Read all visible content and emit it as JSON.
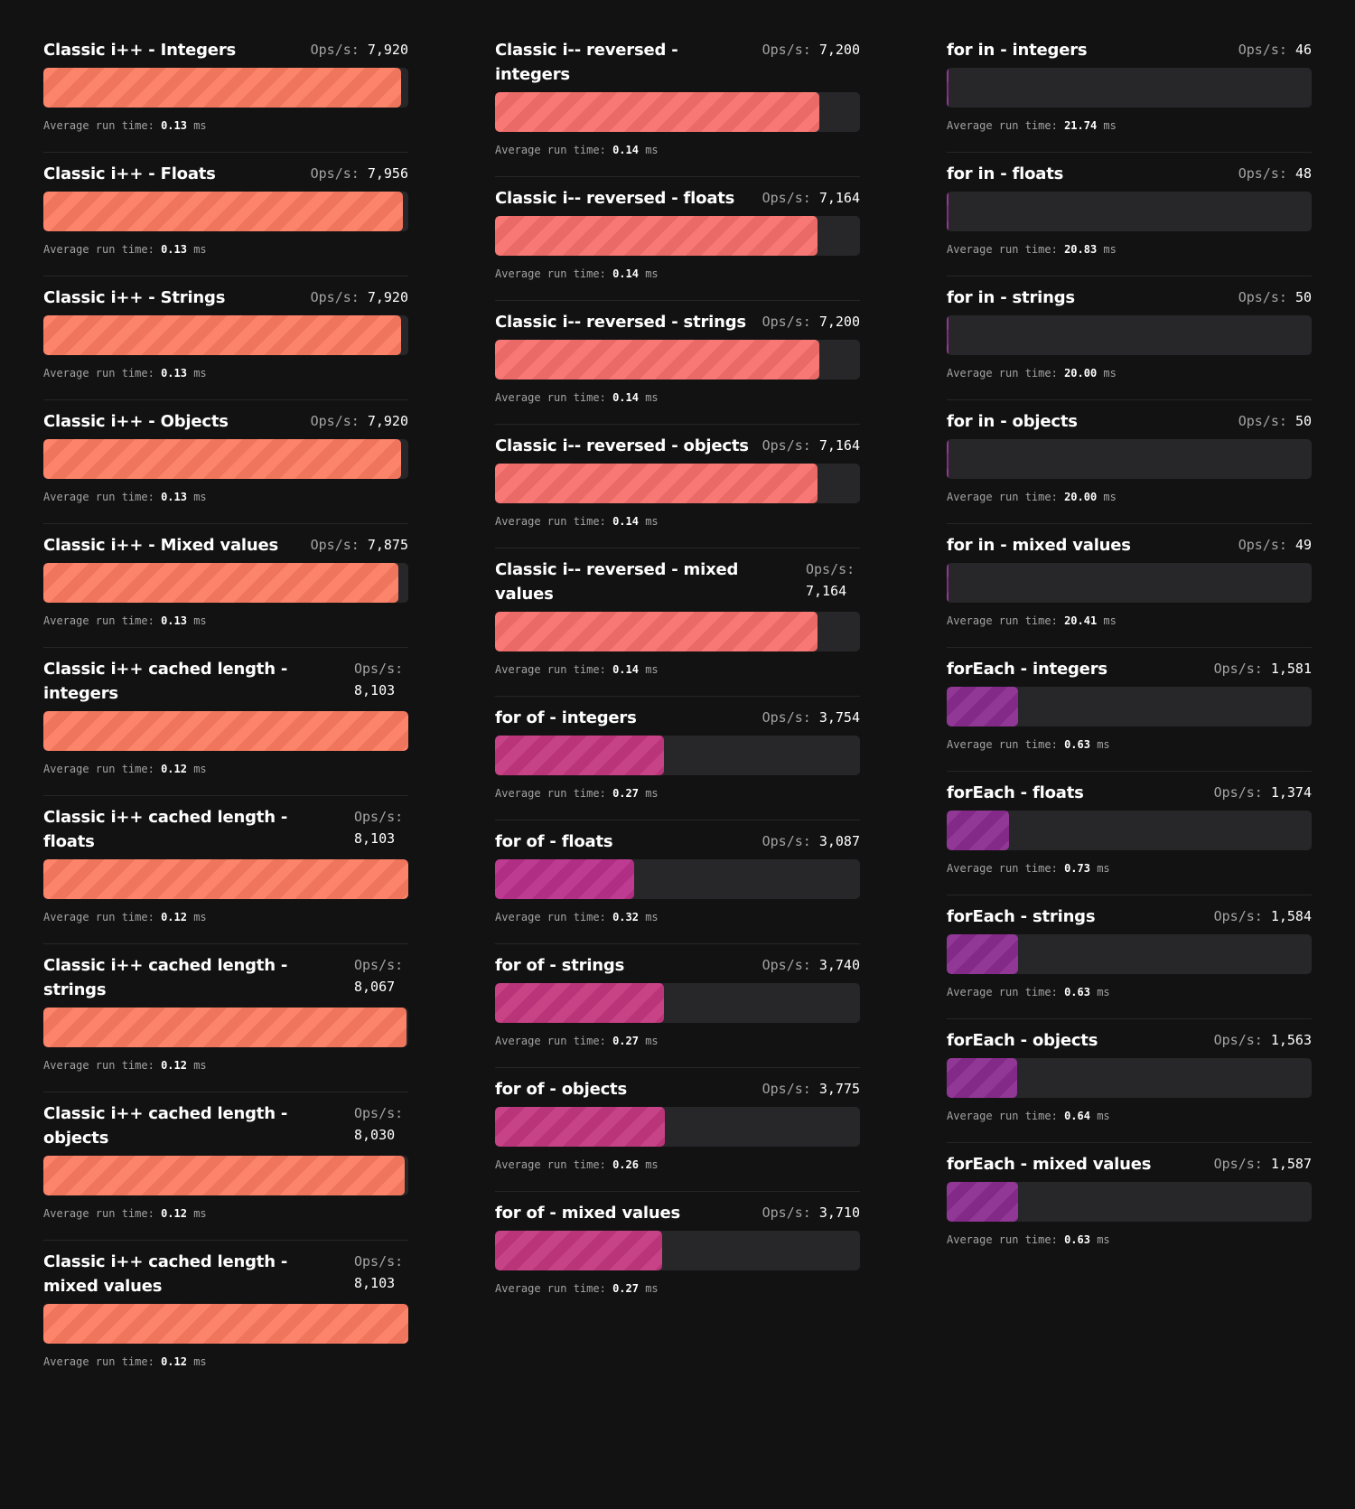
{
  "labels": {
    "ops": "Ops/s:",
    "avg": "Average run time:",
    "unit": "ms"
  },
  "colors": {
    "track": "#272729",
    "background": "#121212"
  },
  "columns": [
    {
      "id": "classic-increment",
      "items": [
        {
          "name": "Classic i++ - Integers",
          "ops": "7,920",
          "fill": 0.98,
          "avg": "0.13",
          "color": "#fc7c62",
          "wrap": false
        },
        {
          "name": "Classic i++ - Floats",
          "ops": "7,956",
          "fill": 0.985,
          "avg": "0.13",
          "color": "#fc7c62",
          "wrap": false
        },
        {
          "name": "Classic i++ - Strings",
          "ops": "7,920",
          "fill": 0.98,
          "avg": "0.13",
          "color": "#fc7c62",
          "wrap": false
        },
        {
          "name": "Classic i++ - Objects",
          "ops": "7,920",
          "fill": 0.98,
          "avg": "0.13",
          "color": "#fc7c62",
          "wrap": false
        },
        {
          "name": "Classic i++ - Mixed values",
          "ops": "7,875",
          "fill": 0.972,
          "avg": "0.13",
          "color": "#fc7c62",
          "wrap": false
        },
        {
          "name": "Classic i++ cached length - integers",
          "ops": "8,103",
          "fill": 1.0,
          "avg": "0.12",
          "color": "#fc7c62",
          "wrap": true
        },
        {
          "name": "Classic i++ cached length - floats",
          "ops": "8,103",
          "fill": 1.0,
          "avg": "0.12",
          "color": "#fc7c62",
          "wrap": true
        },
        {
          "name": "Classic i++ cached length - strings",
          "ops": "8,067",
          "fill": 0.995,
          "avg": "0.12",
          "color": "#fc7c62",
          "wrap": true
        },
        {
          "name": "Classic i++ cached length - objects",
          "ops": "8,030",
          "fill": 0.99,
          "avg": "0.12",
          "color": "#fc7c62",
          "wrap": true
        },
        {
          "name": "Classic i++ cached length - mixed values",
          "ops": "8,103",
          "fill": 1.0,
          "avg": "0.12",
          "color": "#fc7c62",
          "wrap": true
        }
      ]
    },
    {
      "id": "reversed-and-for-of",
      "items": [
        {
          "name": "Classic i-- reversed - integers",
          "ops": "7,200",
          "fill": 0.889,
          "avg": "0.14",
          "color": "#f6706b",
          "wrap": false
        },
        {
          "name": "Classic i-- reversed - floats",
          "ops": "7,164",
          "fill": 0.884,
          "avg": "0.14",
          "color": "#f6706b",
          "wrap": false
        },
        {
          "name": "Classic i-- reversed - strings",
          "ops": "7,200",
          "fill": 0.889,
          "avg": "0.14",
          "color": "#f6706b",
          "wrap": false
        },
        {
          "name": "Classic i-- reversed - objects",
          "ops": "7,164",
          "fill": 0.884,
          "avg": "0.14",
          "color": "#f6706b",
          "wrap": false
        },
        {
          "name": "Classic i-- reversed - mixed values",
          "ops": "7,164",
          "fill": 0.884,
          "avg": "0.14",
          "color": "#f6706b",
          "wrap": true
        },
        {
          "name": "for of - integers",
          "ops": "3,754",
          "fill": 0.463,
          "avg": "0.27",
          "color": "#c4377f",
          "wrap": false
        },
        {
          "name": "for of - floats",
          "ops": "3,087",
          "fill": 0.381,
          "avg": "0.32",
          "color": "#b9308a",
          "wrap": false
        },
        {
          "name": "for of - strings",
          "ops": "3,740",
          "fill": 0.462,
          "avg": "0.27",
          "color": "#c4377f",
          "wrap": false
        },
        {
          "name": "for of - objects",
          "ops": "3,775",
          "fill": 0.466,
          "avg": "0.26",
          "color": "#c4377f",
          "wrap": false
        },
        {
          "name": "for of - mixed values",
          "ops": "3,710",
          "fill": 0.458,
          "avg": "0.27",
          "color": "#c4377f",
          "wrap": false
        }
      ]
    },
    {
      "id": "for-in-and-foreach",
      "items": [
        {
          "name": "for in - integers",
          "ops": "46",
          "fill": 0.0057,
          "avg": "21.74",
          "color": "#8a2b8f",
          "wrap": false
        },
        {
          "name": "for in - floats",
          "ops": "48",
          "fill": 0.0059,
          "avg": "20.83",
          "color": "#8a2b8f",
          "wrap": false
        },
        {
          "name": "for in - strings",
          "ops": "50",
          "fill": 0.0062,
          "avg": "20.00",
          "color": "#8a2b8f",
          "wrap": false
        },
        {
          "name": "for in - objects",
          "ops": "50",
          "fill": 0.0062,
          "avg": "20.00",
          "color": "#8a2b8f",
          "wrap": false
        },
        {
          "name": "for in - mixed values",
          "ops": "49",
          "fill": 0.006,
          "avg": "20.41",
          "color": "#8a2b8f",
          "wrap": false
        },
        {
          "name": "forEach - integers",
          "ops": "1,581",
          "fill": 0.195,
          "avg": "0.63",
          "color": "#8a2b8f",
          "wrap": false
        },
        {
          "name": "forEach - floats",
          "ops": "1,374",
          "fill": 0.17,
          "avg": "0.73",
          "color": "#8a2b8f",
          "wrap": false
        },
        {
          "name": "forEach - strings",
          "ops": "1,584",
          "fill": 0.195,
          "avg": "0.63",
          "color": "#8a2b8f",
          "wrap": false
        },
        {
          "name": "forEach - objects",
          "ops": "1,563",
          "fill": 0.193,
          "avg": "0.64",
          "color": "#8a2b8f",
          "wrap": false
        },
        {
          "name": "forEach - mixed values",
          "ops": "1,587",
          "fill": 0.196,
          "avg": "0.63",
          "color": "#8a2b8f",
          "wrap": false
        }
      ]
    }
  ]
}
